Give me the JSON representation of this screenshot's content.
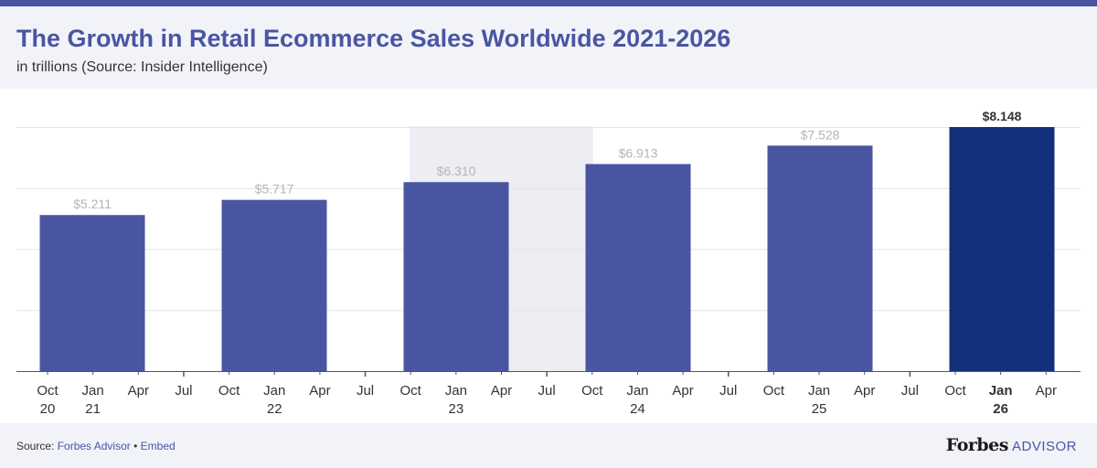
{
  "header": {
    "title": "The Growth in Retail Ecommerce Sales Worldwide 2021-2026",
    "subtitle": "in trillions (Source: Insider Intelligence)"
  },
  "footer": {
    "source_prefix": "Source:",
    "source_link": "Forbes Advisor",
    "separator": "•",
    "embed_link": "Embed",
    "brand_name": "Forbes",
    "brand_suffix": "ADVISOR"
  },
  "colors": {
    "accent": "#4a55a2",
    "bar": "#4a55a2",
    "bar_highlight": "#13307a",
    "shade": "#eceef4",
    "label": "#b5b5b5",
    "axis_text": "#333333"
  },
  "chart_data": {
    "type": "bar",
    "title": "The Growth in Retail Ecommerce Sales Worldwide 2021-2026",
    "subtitle": "in trillions (Source: Insider Intelligence)",
    "xlabel": "",
    "ylabel": "",
    "ylim": [
      0,
      8.148
    ],
    "grid": true,
    "legend": "none",
    "categories": [
      "2021",
      "2022",
      "2023",
      "2024",
      "2025",
      "2026"
    ],
    "values": [
      5.211,
      5.717,
      6.31,
      6.913,
      7.528,
      8.148
    ],
    "value_labels": [
      "$5.211",
      "$5.717",
      "$6.310",
      "$6.913",
      "$7.528",
      "$8.148"
    ],
    "highlight_index": 5,
    "shaded_index": 2,
    "x_ticks": [
      {
        "top": "Oct",
        "bottom": "20"
      },
      {
        "top": "Jan",
        "bottom": "21"
      },
      {
        "top": "Apr",
        "bottom": ""
      },
      {
        "top": "Jul",
        "bottom": ""
      },
      {
        "top": "Oct",
        "bottom": ""
      },
      {
        "top": "Jan",
        "bottom": "22"
      },
      {
        "top": "Apr",
        "bottom": ""
      },
      {
        "top": "Jul",
        "bottom": ""
      },
      {
        "top": "Oct",
        "bottom": ""
      },
      {
        "top": "Jan",
        "bottom": "23"
      },
      {
        "top": "Apr",
        "bottom": ""
      },
      {
        "top": "Jul",
        "bottom": ""
      },
      {
        "top": "Oct",
        "bottom": ""
      },
      {
        "top": "Jan",
        "bottom": "24"
      },
      {
        "top": "Apr",
        "bottom": ""
      },
      {
        "top": "Jul",
        "bottom": ""
      },
      {
        "top": "Oct",
        "bottom": ""
      },
      {
        "top": "Jan",
        "bottom": "25"
      },
      {
        "top": "Apr",
        "bottom": ""
      },
      {
        "top": "Jul",
        "bottom": ""
      },
      {
        "top": "Oct",
        "bottom": ""
      },
      {
        "top": "Jan",
        "bottom": "26"
      },
      {
        "top": "Apr",
        "bottom": ""
      }
    ],
    "bold_tick_index": 21
  }
}
